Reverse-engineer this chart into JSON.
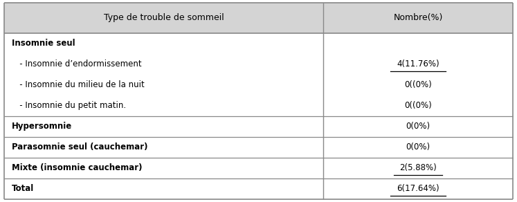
{
  "header": [
    "Type de trouble de sommeil",
    "Nombre(%)"
  ],
  "rows": [
    {
      "label": "Insomnie seul",
      "value": "",
      "bold": true,
      "indent": 0,
      "underline": false,
      "separator_after": false,
      "row_weight": 1.0
    },
    {
      "label": "   - Insomnie d’endormissement",
      "value": "4(11.76%)",
      "bold": false,
      "indent": 0,
      "underline": true,
      "separator_after": false,
      "row_weight": 1.0
    },
    {
      "label": "   - Insomnie du milieu de la nuit",
      "value": "0((0%)",
      "bold": false,
      "indent": 0,
      "underline": false,
      "separator_after": false,
      "row_weight": 1.0
    },
    {
      "label": "   - Insomnie du petit matin.",
      "value": "0((0%)",
      "bold": false,
      "indent": 0,
      "underline": false,
      "separator_after": true,
      "row_weight": 1.0
    },
    {
      "label": "Hypersomnie",
      "value": "0(0%)",
      "bold": true,
      "indent": 0,
      "underline": false,
      "separator_after": true,
      "row_weight": 1.0
    },
    {
      "label": "Parasomnie seul (cauchemar)",
      "value": "0(0%)",
      "bold": true,
      "indent": 0,
      "underline": false,
      "separator_after": true,
      "row_weight": 1.0
    },
    {
      "label": "Mixte (insomnie cauchemar)",
      "value": "2(5.88%)",
      "bold": true,
      "indent": 0,
      "underline": true,
      "separator_after": true,
      "row_weight": 1.0
    },
    {
      "label": "Total",
      "value": "6(17.64%)",
      "bold": true,
      "indent": 0,
      "underline": true,
      "separator_after": false,
      "row_weight": 1.0
    }
  ],
  "col_split": 0.625,
  "header_bg": "#d4d4d4",
  "bg_color": "#ffffff",
  "border_color": "#888888",
  "text_color": "#000000",
  "font_size": 8.5,
  "header_font_size": 9.0,
  "fig_width": 7.47,
  "fig_height": 2.92,
  "dpi": 100
}
